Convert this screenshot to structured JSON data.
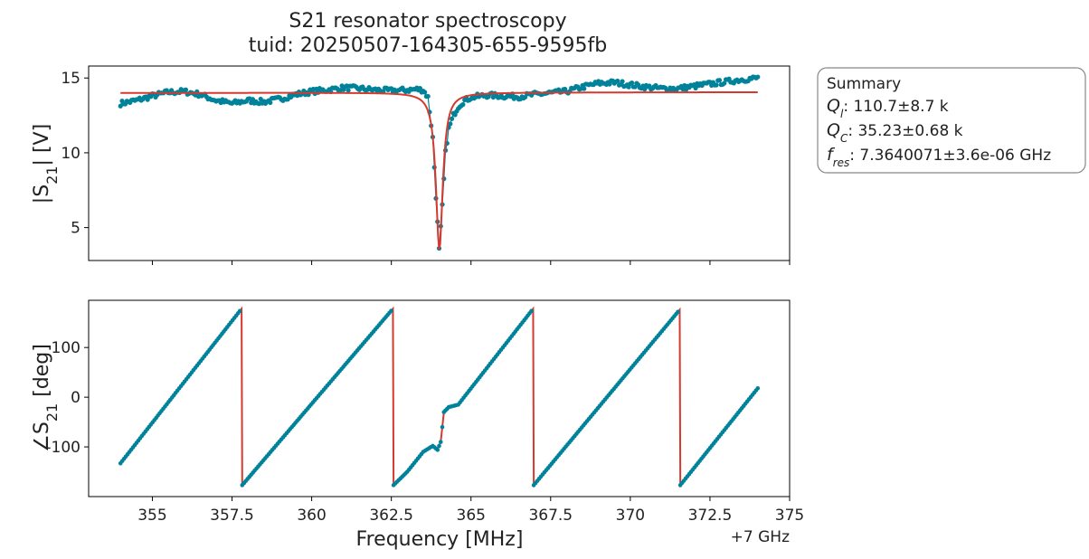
{
  "chart_data": [
    {
      "type": "scatter",
      "title_lines": [
        "S21 resonator spectroscopy",
        "tuid: 20250507-164305-655-9595fb"
      ],
      "ylabel_main": "|S",
      "ylabel_sub": "21",
      "ylabel_unit": "| [V]",
      "xlim": [
        353,
        375
      ],
      "ylim": [
        2.8,
        15.8
      ],
      "yticks": [
        5,
        10,
        15
      ],
      "yticklabels": [
        "5",
        "10",
        "15"
      ],
      "resonance": {
        "f0": 364.0071,
        "fwhm": 0.26,
        "baseline_start": 14.0,
        "baseline_end": 14.05,
        "min": 3.5
      },
      "series": [
        {
          "kind": "measured",
          "color": "#00839a",
          "points": [
            [
              354.0,
              13.3
            ],
            [
              354.5,
              13.5
            ],
            [
              355.0,
              13.8
            ],
            [
              355.5,
              14.05
            ],
            [
              356.0,
              14.1
            ],
            [
              356.5,
              13.9
            ],
            [
              357.0,
              13.5
            ],
            [
              357.5,
              13.3
            ],
            [
              358.0,
              13.5
            ],
            [
              358.5,
              13.4
            ],
            [
              359.0,
              13.6
            ],
            [
              359.5,
              13.9
            ],
            [
              360.0,
              14.1
            ],
            [
              360.5,
              14.2
            ],
            [
              361.0,
              14.35
            ],
            [
              361.5,
              14.3
            ],
            [
              362.0,
              14.2
            ],
            [
              362.5,
              14.15
            ],
            [
              363.0,
              14.2
            ],
            [
              363.3,
              14.25
            ],
            [
              363.5,
              14.2
            ],
            [
              363.65,
              13.7
            ],
            [
              363.8,
              11.0
            ],
            [
              363.9,
              7.1
            ],
            [
              364.0,
              3.5
            ],
            [
              364.1,
              6.4
            ],
            [
              364.2,
              10.0
            ],
            [
              364.3,
              11.6
            ],
            [
              364.45,
              12.5
            ],
            [
              364.6,
              13.1
            ],
            [
              364.8,
              13.5
            ],
            [
              365.0,
              13.7
            ],
            [
              365.5,
              13.85
            ],
            [
              366.0,
              13.8
            ],
            [
              366.5,
              13.75
            ],
            [
              367.0,
              13.9
            ],
            [
              367.5,
              14.0
            ],
            [
              368.0,
              14.1
            ],
            [
              368.5,
              14.4
            ],
            [
              369.0,
              14.65
            ],
            [
              369.5,
              14.7
            ],
            [
              370.0,
              14.55
            ],
            [
              370.5,
              14.4
            ],
            [
              371.0,
              14.3
            ],
            [
              371.5,
              14.3
            ],
            [
              372.0,
              14.45
            ],
            [
              372.5,
              14.6
            ],
            [
              373.0,
              14.75
            ],
            [
              373.5,
              14.9
            ],
            [
              374.0,
              15.0
            ]
          ]
        },
        {
          "kind": "fit",
          "color": "#d63a2e"
        }
      ]
    },
    {
      "type": "scatter",
      "xlabel": "Frequency [MHz]",
      "x_offset_label": "+7 GHz",
      "ylabel_main": "∠S",
      "ylabel_sub": "21",
      "ylabel_unit": " [deg]",
      "xlim": [
        353,
        375
      ],
      "ylim": [
        -200,
        195
      ],
      "xticks": [
        355,
        357.5,
        360,
        362.5,
        365,
        367.5,
        370,
        372.5,
        375
      ],
      "xticklabels": [
        "355",
        "357.5",
        "360",
        "362.5",
        "365",
        "367.5",
        "370",
        "372.5",
        "375"
      ],
      "yticks": [
        -100,
        0,
        100
      ],
      "yticklabels": [
        "-100",
        "0",
        "100"
      ],
      "series": [
        {
          "kind": "measured",
          "color": "#00839a",
          "points": [
            [
              354.0,
              -133
            ],
            [
              357.8,
              178
            ],
            [
              357.82,
              -177
            ],
            [
              362.55,
              178
            ],
            [
              362.57,
              -177
            ],
            [
              363.0,
              -150
            ],
            [
              363.5,
              -110
            ],
            [
              363.8,
              -98
            ],
            [
              363.95,
              -106
            ],
            [
              364.05,
              -90
            ],
            [
              364.15,
              -30
            ],
            [
              364.3,
              -20
            ],
            [
              364.6,
              -15
            ],
            [
              366.95,
              178
            ],
            [
              366.97,
              -177
            ],
            [
              371.55,
              176
            ],
            [
              371.57,
              -177
            ],
            [
              374.0,
              18
            ]
          ]
        },
        {
          "kind": "fit",
          "color": "#d63a2e"
        }
      ]
    }
  ],
  "summary": {
    "header": "Summary",
    "rows": [
      {
        "sym": "Q",
        "sub": "l",
        "value": ": 110.7±8.7 k"
      },
      {
        "sym": "Q",
        "sub": "C",
        "value": ": 35.23±0.68 k"
      },
      {
        "sym": "f",
        "sub": "res",
        "value": ": 7.3640071±3.6e-06 GHz"
      }
    ]
  }
}
